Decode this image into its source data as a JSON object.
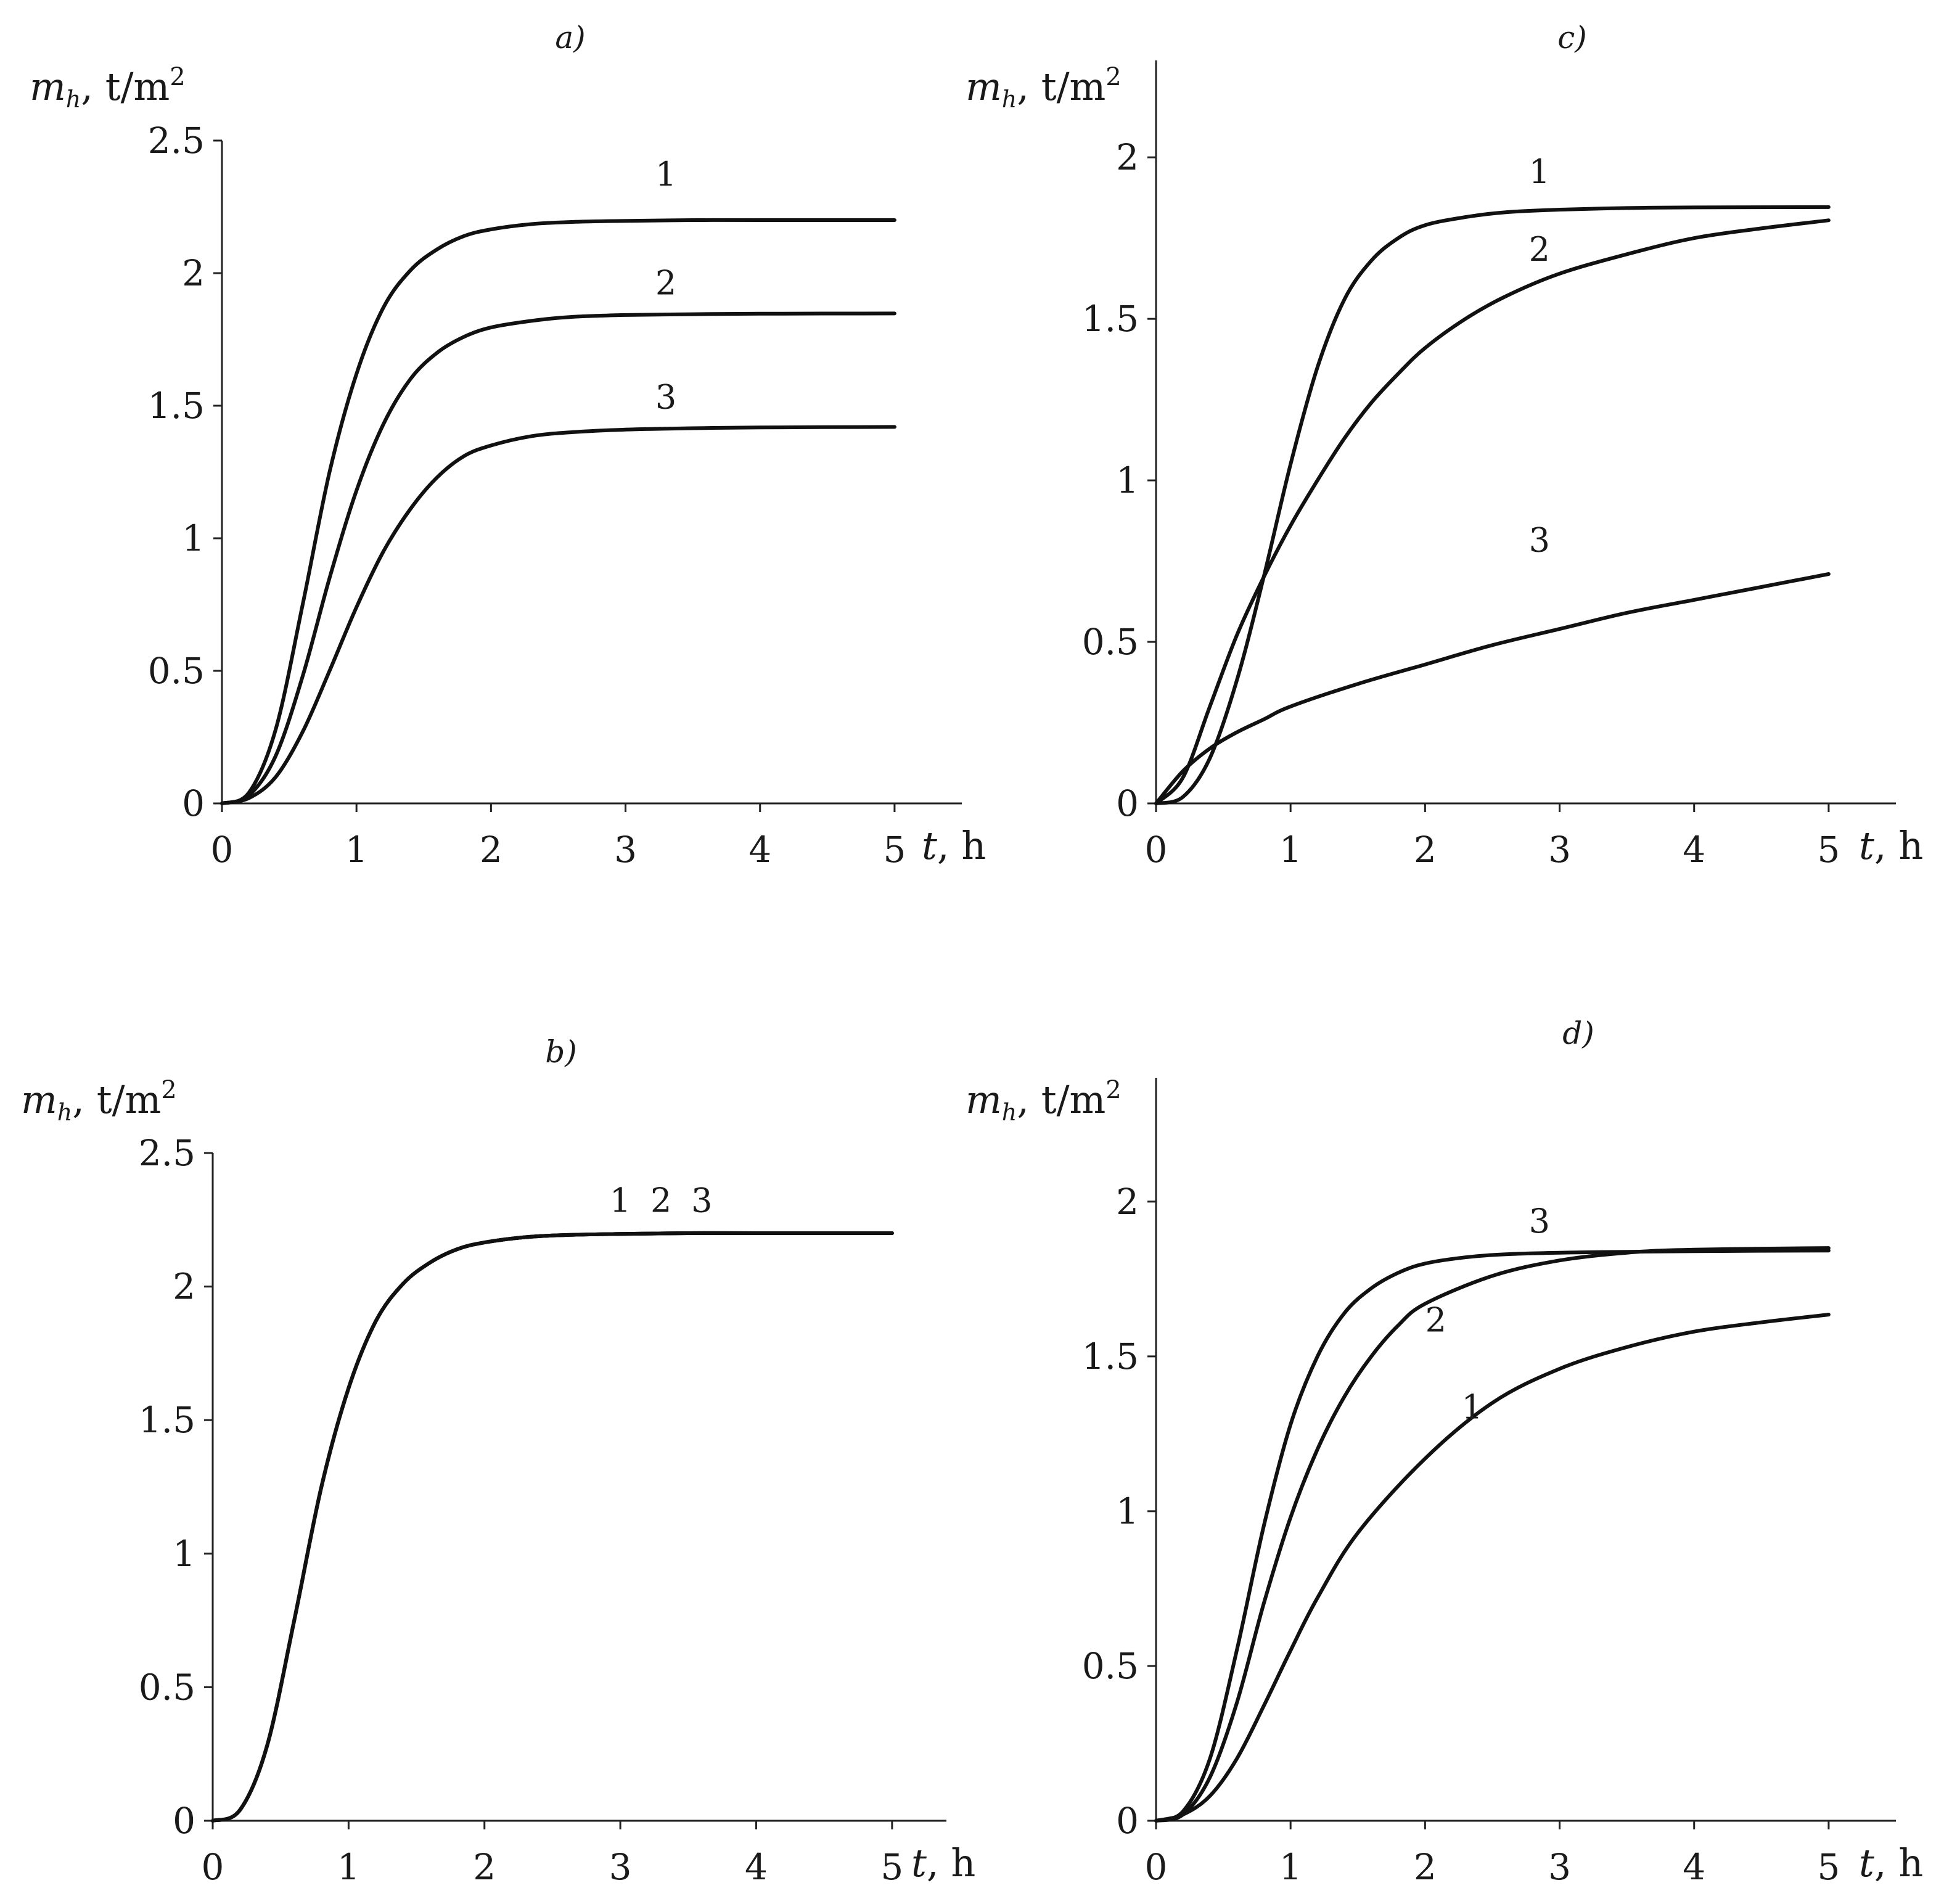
{
  "figure": {
    "panel_count": 4
  },
  "chart_data": [
    {
      "id": "a",
      "type": "line",
      "title": "a)",
      "xlabel_var": "t",
      "xlabel_unit": ", h",
      "ylabel_var": "m",
      "ylabel_sub": "h",
      "ylabel_unit": ", t/m",
      "ylabel_exp": "2",
      "xlim": [
        0,
        5.5
      ],
      "ylim": [
        0,
        2.5
      ],
      "xticks": [
        0,
        1,
        2,
        3,
        4,
        5
      ],
      "xtick_labels": [
        "0",
        "1",
        "2",
        "3",
        "4",
        "5"
      ],
      "yticks": [
        0,
        0.5,
        1,
        1.5,
        2,
        2.5
      ],
      "ytick_labels": [
        "0",
        "0.5",
        "1",
        "1.5",
        "2",
        "2.5"
      ],
      "series": [
        {
          "name": "1",
          "label": "1",
          "label_t": 3.3,
          "label_m": 2.33,
          "t": [
            0,
            0.2,
            0.4,
            0.6,
            0.8,
            1.0,
            1.2,
            1.4,
            1.6,
            1.8,
            2.0,
            2.3,
            2.6,
            3.0,
            3.5,
            4.0,
            5.0
          ],
          "m": [
            0,
            0.04,
            0.28,
            0.75,
            1.25,
            1.62,
            1.87,
            2.01,
            2.09,
            2.14,
            2.165,
            2.185,
            2.193,
            2.197,
            2.2,
            2.2,
            2.2
          ]
        },
        {
          "name": "2",
          "label": "2",
          "label_t": 3.3,
          "label_m": 1.92,
          "t": [
            0,
            0.2,
            0.4,
            0.6,
            0.8,
            1.0,
            1.2,
            1.4,
            1.6,
            1.8,
            2.0,
            2.3,
            2.6,
            3.0,
            3.5,
            4.0,
            5.0
          ],
          "m": [
            0,
            0.03,
            0.18,
            0.48,
            0.85,
            1.18,
            1.43,
            1.6,
            1.7,
            1.76,
            1.795,
            1.82,
            1.835,
            1.842,
            1.845,
            1.847,
            1.848
          ]
        },
        {
          "name": "3",
          "label": "3",
          "label_t": 3.3,
          "label_m": 1.49,
          "t": [
            0,
            0.2,
            0.4,
            0.6,
            0.8,
            1.0,
            1.2,
            1.4,
            1.6,
            1.8,
            2.0,
            2.3,
            2.6,
            3.0,
            3.5,
            4.0,
            5.0
          ],
          "m": [
            0,
            0.02,
            0.1,
            0.27,
            0.5,
            0.74,
            0.95,
            1.11,
            1.23,
            1.31,
            1.35,
            1.385,
            1.4,
            1.41,
            1.415,
            1.418,
            1.42
          ]
        }
      ]
    },
    {
      "id": "b",
      "type": "line",
      "title": "b)",
      "xlabel_var": "t",
      "xlabel_unit": ", h",
      "ylabel_var": "m",
      "ylabel_sub": "h",
      "ylabel_unit": ", t/m",
      "ylabel_exp": "2",
      "xlim": [
        0,
        5.4
      ],
      "ylim": [
        0,
        2.5
      ],
      "xticks": [
        0,
        1,
        2,
        3,
        4,
        5
      ],
      "xtick_labels": [
        "0",
        "1",
        "2",
        "3",
        "4",
        "5"
      ],
      "yticks": [
        0,
        0.5,
        1,
        1.5,
        2,
        2.5
      ],
      "ytick_labels": [
        "0",
        "0.5",
        "1",
        "1.5",
        "2",
        "2.5"
      ],
      "series": [
        {
          "name": "1",
          "label": "1",
          "label_t": 3.0,
          "label_m": 2.28,
          "t": [
            0,
            0.2,
            0.4,
            0.6,
            0.8,
            1.0,
            1.2,
            1.4,
            1.6,
            1.8,
            2.0,
            2.3,
            2.6,
            3.0,
            3.5,
            4.0,
            5.0
          ],
          "m": [
            0,
            0.04,
            0.28,
            0.75,
            1.25,
            1.62,
            1.87,
            2.01,
            2.09,
            2.14,
            2.165,
            2.185,
            2.193,
            2.197,
            2.2,
            2.2,
            2.2
          ]
        },
        {
          "name": "2",
          "label": "2",
          "label_t": 3.3,
          "label_m": 2.28,
          "t": [
            0,
            0.2,
            0.4,
            0.6,
            0.8,
            1.0,
            1.2,
            1.4,
            1.6,
            1.8,
            2.0,
            2.3,
            2.6,
            3.0,
            3.5,
            4.0,
            5.0
          ],
          "m": [
            0,
            0.04,
            0.28,
            0.75,
            1.25,
            1.62,
            1.87,
            2.01,
            2.09,
            2.14,
            2.165,
            2.185,
            2.193,
            2.197,
            2.2,
            2.2,
            2.2
          ]
        },
        {
          "name": "3",
          "label": "3",
          "label_t": 3.6,
          "label_m": 2.28,
          "t": [
            0,
            0.2,
            0.4,
            0.6,
            0.8,
            1.0,
            1.2,
            1.4,
            1.6,
            1.8,
            2.0,
            2.3,
            2.6,
            3.0,
            3.5,
            4.0,
            5.0
          ],
          "m": [
            0,
            0.04,
            0.28,
            0.75,
            1.25,
            1.62,
            1.87,
            2.01,
            2.09,
            2.14,
            2.165,
            2.185,
            2.193,
            2.197,
            2.2,
            2.2,
            2.2
          ]
        }
      ]
    },
    {
      "id": "c",
      "type": "line",
      "title": "c)",
      "xlabel_var": "t",
      "xlabel_unit": ", h",
      "ylabel_var": "m",
      "ylabel_sub": "h",
      "ylabel_unit": ", t/m",
      "ylabel_exp": "2",
      "xlim": [
        0,
        5.5
      ],
      "ylim": [
        0,
        2.3
      ],
      "xticks": [
        0,
        1,
        2,
        3,
        4,
        5
      ],
      "xtick_labels": [
        "0",
        "1",
        "2",
        "3",
        "4",
        "5"
      ],
      "yticks": [
        0,
        0.5,
        1,
        1.5,
        2
      ],
      "ytick_labels": [
        "0",
        "0.5",
        "1",
        "1.5",
        "2"
      ],
      "series": [
        {
          "name": "1",
          "label": "1",
          "label_t": 2.85,
          "label_m": 1.92,
          "t": [
            0,
            0.2,
            0.4,
            0.6,
            0.8,
            1.0,
            1.2,
            1.4,
            1.6,
            1.8,
            2.0,
            2.3,
            2.6,
            3.0,
            3.5,
            4.0,
            5.0
          ],
          "m": [
            0,
            0.02,
            0.14,
            0.38,
            0.7,
            1.05,
            1.35,
            1.56,
            1.68,
            1.75,
            1.79,
            1.815,
            1.83,
            1.838,
            1.843,
            1.845,
            1.846
          ]
        },
        {
          "name": "2",
          "label": "2",
          "label_t": 2.85,
          "label_m": 1.68,
          "t": [
            0,
            0.2,
            0.4,
            0.6,
            0.8,
            1.0,
            1.2,
            1.4,
            1.6,
            1.8,
            2.0,
            2.3,
            2.6,
            3.0,
            3.5,
            4.0,
            4.5,
            5.0
          ],
          "m": [
            0,
            0.08,
            0.3,
            0.52,
            0.7,
            0.86,
            1.0,
            1.13,
            1.24,
            1.33,
            1.41,
            1.5,
            1.57,
            1.64,
            1.7,
            1.75,
            1.78,
            1.805
          ]
        },
        {
          "name": "3",
          "label": "3",
          "label_t": 2.85,
          "label_m": 0.78,
          "t": [
            0,
            0.2,
            0.4,
            0.6,
            0.8,
            1.0,
            1.5,
            2.0,
            2.5,
            3.0,
            3.5,
            4.0,
            4.5,
            5.0
          ],
          "m": [
            0,
            0.1,
            0.17,
            0.22,
            0.26,
            0.3,
            0.37,
            0.43,
            0.49,
            0.54,
            0.59,
            0.63,
            0.67,
            0.71
          ]
        }
      ]
    },
    {
      "id": "d",
      "type": "line",
      "title": "d)",
      "xlabel_var": "t",
      "xlabel_unit": ", h",
      "ylabel_var": "m",
      "ylabel_sub": "h",
      "ylabel_unit": ", t/m",
      "ylabel_exp": "2",
      "xlim": [
        0,
        5.5
      ],
      "ylim": [
        0,
        2.4
      ],
      "xticks": [
        0,
        1,
        2,
        3,
        4,
        5
      ],
      "xtick_labels": [
        "0",
        "1",
        "2",
        "3",
        "4",
        "5"
      ],
      "yticks": [
        0,
        0.5,
        1,
        1.5,
        2
      ],
      "ytick_labels": [
        "0",
        "0.5",
        "1",
        "1.5",
        "2"
      ],
      "series": [
        {
          "name": "1",
          "label": "1",
          "label_t": 2.35,
          "label_m": 1.3,
          "t": [
            0,
            0.2,
            0.4,
            0.6,
            0.8,
            1.0,
            1.2,
            1.5,
            2.0,
            2.5,
            3.0,
            3.5,
            4.0,
            4.5,
            5.0
          ],
          "m": [
            0,
            0.02,
            0.08,
            0.2,
            0.37,
            0.55,
            0.72,
            0.93,
            1.17,
            1.35,
            1.46,
            1.53,
            1.58,
            1.61,
            1.635
          ]
        },
        {
          "name": "2",
          "label": "2",
          "label_t": 2.08,
          "label_m": 1.58,
          "t": [
            0,
            0.2,
            0.4,
            0.6,
            0.8,
            1.0,
            1.2,
            1.4,
            1.6,
            1.8,
            2.0,
            2.5,
            3.0,
            3.5,
            4.0,
            5.0
          ],
          "m": [
            0,
            0.02,
            0.14,
            0.38,
            0.7,
            0.98,
            1.2,
            1.37,
            1.5,
            1.6,
            1.67,
            1.76,
            1.81,
            1.835,
            1.845,
            1.85
          ]
        },
        {
          "name": "3",
          "label": "3",
          "label_t": 2.85,
          "label_m": 1.9,
          "t": [
            0,
            0.2,
            0.4,
            0.6,
            0.8,
            1.0,
            1.2,
            1.4,
            1.6,
            1.8,
            2.0,
            2.3,
            2.6,
            3.0,
            3.5,
            4.0,
            5.0
          ],
          "m": [
            0,
            0.03,
            0.2,
            0.55,
            0.95,
            1.28,
            1.5,
            1.64,
            1.72,
            1.77,
            1.8,
            1.82,
            1.83,
            1.835,
            1.838,
            1.84,
            1.842
          ]
        }
      ]
    }
  ]
}
